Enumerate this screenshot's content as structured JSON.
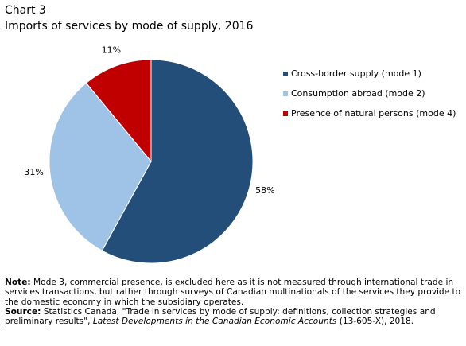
{
  "chart_data": {
    "type": "pie",
    "title": "Chart 3",
    "subtitle": "Imports of services by mode of supply, 2016",
    "categories": [
      "Cross-border supply (mode 1)",
      "Consumption abroad (mode 2)",
      "Presence of natural persons (mode 4)"
    ],
    "values": [
      58,
      31,
      11
    ],
    "value_labels": [
      "58%",
      "31%",
      "11%"
    ],
    "colors": [
      "#234e79",
      "#9ec3e6",
      "#c00000"
    ],
    "legend": "right",
    "note_label": "Note:",
    "note": "Mode 3, commercial presence, is excluded here as it is not measured through international trade in services transactions, but rather through surveys of Canadian multinationals of the services they provide to the domestic economy in which the subsidiary operates.",
    "source_label": "Source:",
    "source_parts": [
      "Statistics Canada, \"Trade in services by mode of supply: definitions, collection strategies and preliminary results\", ",
      "Latest Developments in the Canadian Economic Accounts",
      " (13-605-X), 2018."
    ]
  }
}
